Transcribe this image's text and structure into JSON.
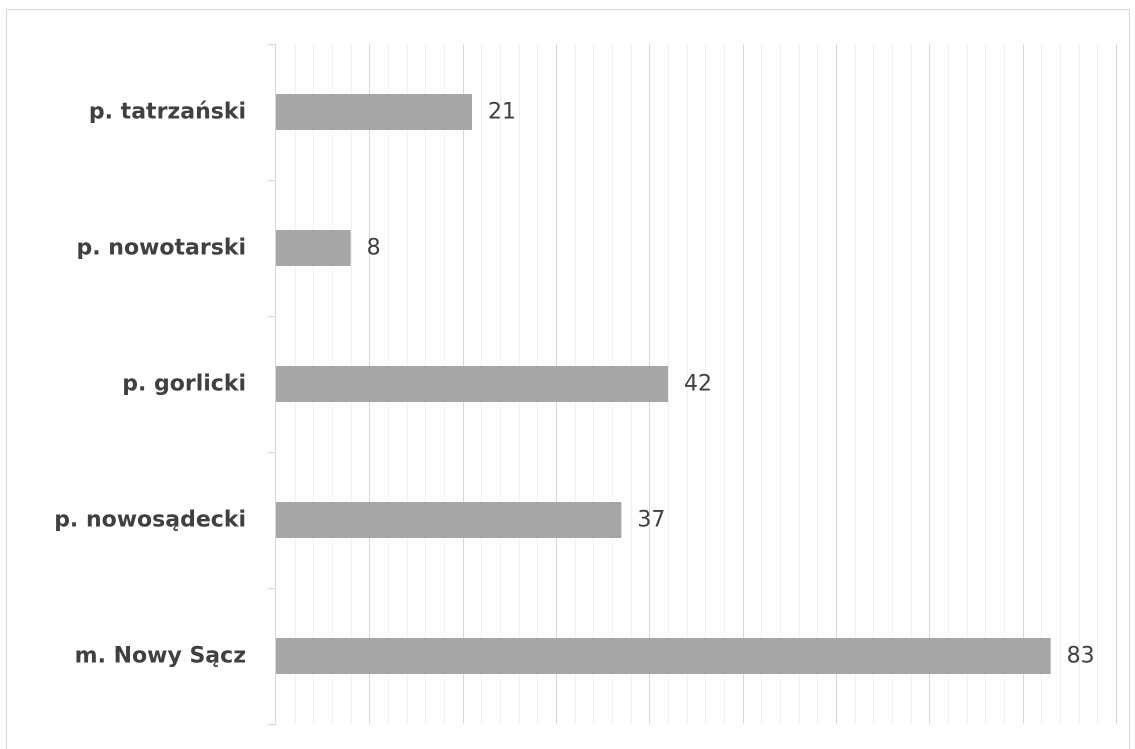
{
  "chart_data": {
    "type": "bar",
    "orientation": "horizontal",
    "title": "",
    "xlabel": "",
    "ylabel": "",
    "categories": [
      "p. tatrzański",
      "p. nowotarski",
      "p. gorlicki",
      "p. nowosądecki",
      "m. Nowy Sącz"
    ],
    "values": [
      21,
      8,
      42,
      37,
      83
    ],
    "xlim": [
      0,
      90
    ],
    "grid": true,
    "legend": "none",
    "data_labels": true,
    "bar_color": "#a6a6a6"
  }
}
